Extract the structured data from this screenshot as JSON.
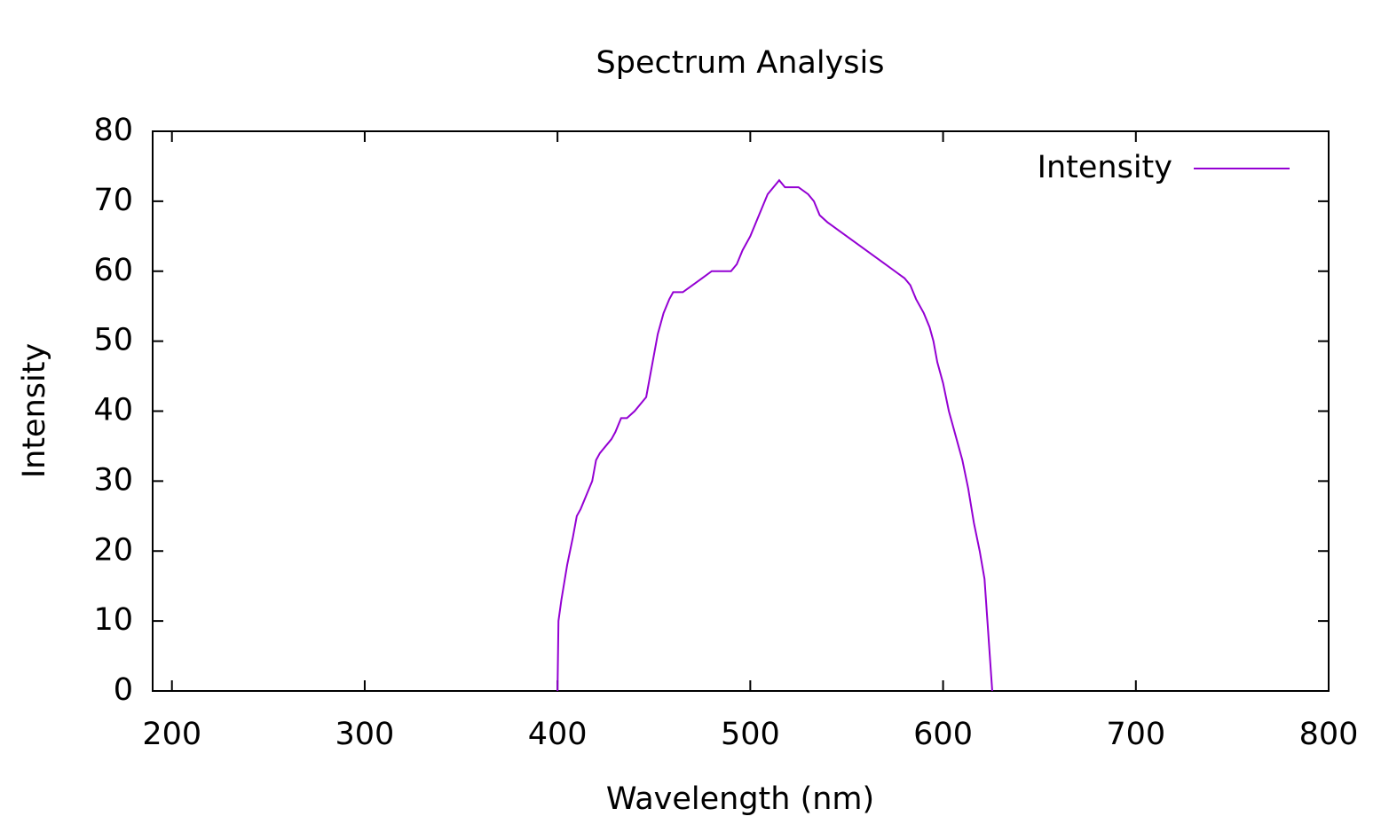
{
  "chart_data": {
    "type": "line",
    "title": "Spectrum Analysis",
    "x_label": "Wavelength (nm)",
    "y_label": "Intensity",
    "x": [
      400,
      400.5,
      402,
      405,
      408,
      410,
      412,
      415,
      418,
      420,
      422,
      425,
      428,
      430,
      433,
      436,
      440,
      443,
      446,
      448,
      450,
      452,
      455,
      458,
      460,
      465,
      470,
      475,
      480,
      485,
      490,
      493,
      496,
      500,
      503,
      506,
      509,
      512,
      515,
      518,
      521,
      525,
      530,
      533,
      536,
      540,
      545,
      550,
      555,
      560,
      565,
      570,
      575,
      580,
      583,
      586,
      590,
      593,
      595,
      597,
      600,
      603,
      605,
      608,
      610,
      613,
      616,
      619,
      621.5,
      623,
      624.5,
      625.5
    ],
    "series": [
      {
        "name": "Intensity",
        "color": "#9400d3",
        "values": [
          0,
          10,
          13,
          18,
          22,
          25,
          26,
          28,
          30,
          33,
          34,
          35,
          36,
          37,
          39,
          39,
          40,
          41,
          42,
          45,
          48,
          51,
          54,
          56,
          57,
          57,
          58,
          59,
          60,
          60,
          60,
          61,
          63,
          65,
          67,
          69,
          71,
          72,
          73,
          72,
          72,
          72,
          71,
          70,
          68,
          67,
          66,
          65,
          64,
          63,
          62,
          61,
          60,
          59,
          58,
          56,
          54,
          52,
          50,
          47,
          44,
          40,
          38,
          35,
          33,
          29,
          24,
          20,
          16,
          10,
          4,
          0
        ]
      }
    ],
    "xlim": [
      190,
      800
    ],
    "xticks": [
      200,
      300,
      400,
      500,
      600,
      700,
      800
    ],
    "ylim": [
      0,
      80
    ],
    "yticks": [
      0,
      10,
      20,
      30,
      40,
      50,
      60,
      70,
      80
    ],
    "legend": "top right",
    "grid": false
  }
}
